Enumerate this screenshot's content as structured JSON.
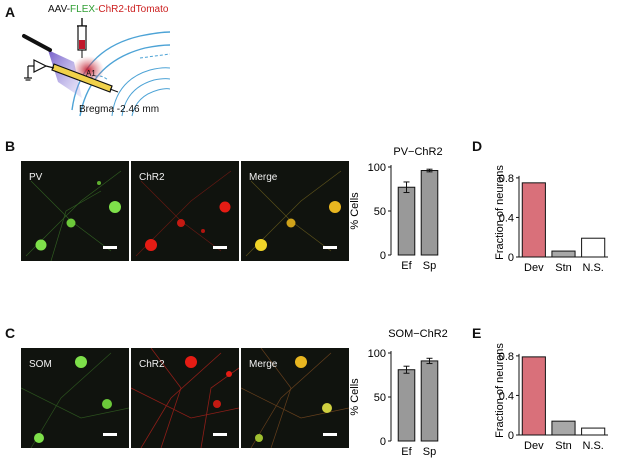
{
  "panelA": {
    "label": "A",
    "virus": {
      "part1": "AAV-",
      "part2": "FLEX-",
      "part3": "ChR2-tdTomato",
      "color1": "#111111",
      "color2": "#2f9e32",
      "color3": "#cc1f1f"
    },
    "bregma": "Bregma -2.46 mm",
    "a1": "A1"
  },
  "panelB": {
    "label": "B",
    "images": [
      {
        "label": "PV",
        "tint": "green"
      },
      {
        "label": "ChR2",
        "tint": "red"
      },
      {
        "label": "Merge",
        "tint": "merge"
      }
    ]
  },
  "panelC": {
    "label": "C",
    "images": [
      {
        "label": "SOM",
        "tint": "green"
      },
      {
        "label": "ChR2",
        "tint": "red"
      },
      {
        "label": "Merge",
        "tint": "merge"
      }
    ]
  },
  "panelD": {
    "label": "D"
  },
  "panelE": {
    "label": "E"
  },
  "chart_data": [
    {
      "type": "bar",
      "title": "PV−ChR2",
      "ylabel": "% Cells",
      "categories": [
        "Ef",
        "Sp"
      ],
      "values": [
        77,
        96
      ],
      "errors": [
        6,
        1.5
      ],
      "ylim": [
        0,
        100
      ],
      "yticks": [
        0,
        50,
        100
      ],
      "bar_color": "#999999"
    },
    {
      "type": "bar",
      "title": "SOM−ChR2",
      "ylabel": "% Cells",
      "categories": [
        "Ef",
        "Sp"
      ],
      "values": [
        81,
        91
      ],
      "errors": [
        4,
        3
      ],
      "ylim": [
        0,
        100
      ],
      "yticks": [
        0,
        50,
        100
      ],
      "bar_color": "#999999"
    },
    {
      "type": "bar",
      "title": "",
      "ylabel": "Fraction of neurons",
      "categories": [
        "Dev",
        "Stn",
        "N.S."
      ],
      "values": [
        0.75,
        0.06,
        0.19
      ],
      "ylim": [
        0,
        0.9
      ],
      "yticks": [
        0,
        0.4,
        0.8
      ],
      "colors": [
        "#d9707a",
        "#a8a8a8",
        "#ffffff"
      ]
    },
    {
      "type": "bar",
      "title": "",
      "ylabel": "Fraction of neurons",
      "categories": [
        "Dev",
        "Stn",
        "N.S."
      ],
      "values": [
        0.79,
        0.14,
        0.07
      ],
      "ylim": [
        0,
        0.9
      ],
      "yticks": [
        0,
        0.4,
        0.8
      ],
      "colors": [
        "#d9707a",
        "#a8a8a8",
        "#ffffff"
      ]
    }
  ]
}
